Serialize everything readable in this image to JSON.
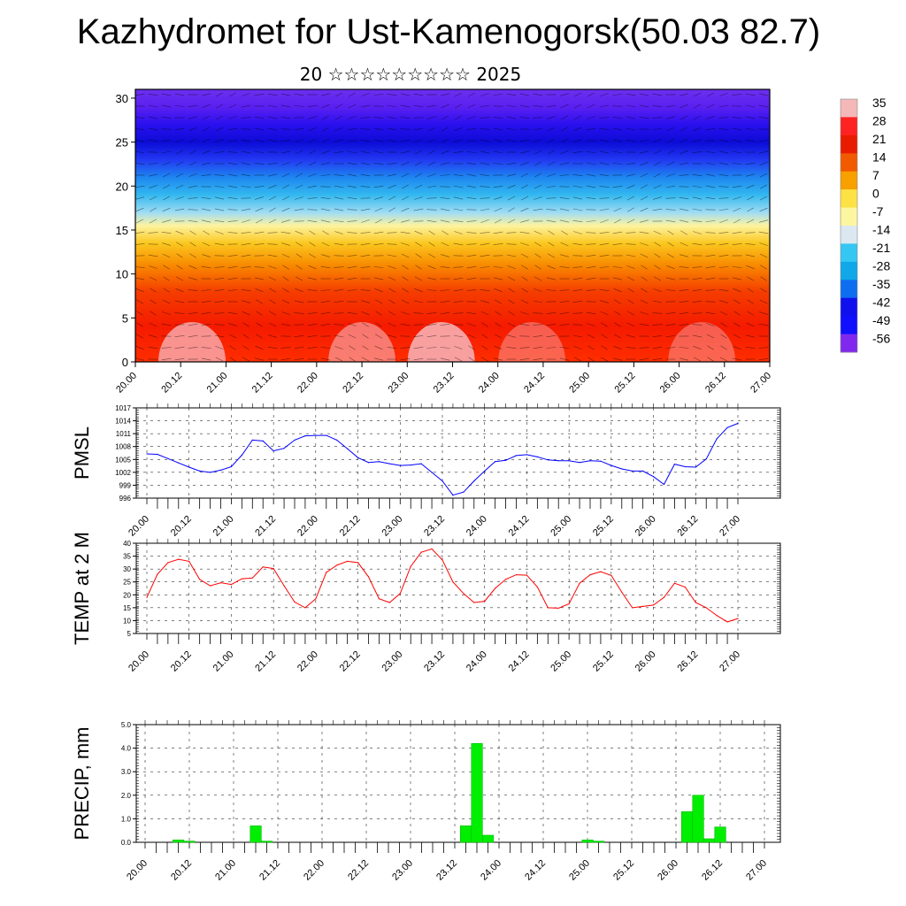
{
  "title": "Kazhydromet for Ust-Kamenogorsk(50.03 82.7)",
  "subtitle": "20 ☆☆☆☆☆☆☆☆☆ 2025",
  "time_labels": [
    "20.00",
    "20.12",
    "21.00",
    "21.12",
    "22.00",
    "22.12",
    "23.00",
    "23.12",
    "24.00",
    "24.12",
    "25.00",
    "25.12",
    "26.00",
    "26.12",
    "27.00"
  ],
  "colors": {
    "pmsl_line": "#0000ff",
    "temp_line": "#ff0000",
    "precip_bar": "#00ee00",
    "precip_edge": "#00bb00"
  },
  "chart_data": [
    {
      "type": "heatmap",
      "name": "vertical-section",
      "y_ticks": [
        0,
        5,
        10,
        15,
        20,
        25,
        30
      ],
      "ylim": [
        0,
        31
      ],
      "colorbar_labels": [
        "35",
        "28",
        "21",
        "14",
        "7",
        "0",
        "-7",
        "-14",
        "-21",
        "-28",
        "-35",
        "-42",
        "-49",
        "-56"
      ],
      "colorbar_colors": [
        "#f4b8b8",
        "#ff2222",
        "#e81c00",
        "#f25a00",
        "#f7a000",
        "#fde246",
        "#fdf6a0",
        "#dbe8f2",
        "#35c6f2",
        "#10a8e8",
        "#0e6ef0",
        "#1010ee",
        "#1010ff",
        "#8028ee"
      ],
      "layer_colors": [
        {
          "z": 0,
          "color": "#ff2e00"
        },
        {
          "z": 4,
          "color": "#f51a00"
        },
        {
          "z": 8,
          "color": "#f53d00"
        },
        {
          "z": 11,
          "color": "#f88a00"
        },
        {
          "z": 13.5,
          "color": "#fbc71e"
        },
        {
          "z": 15.5,
          "color": "#fdf3a0"
        },
        {
          "z": 17,
          "color": "#9fdcf4"
        },
        {
          "z": 19,
          "color": "#33b8ef"
        },
        {
          "z": 21,
          "color": "#1e86f0"
        },
        {
          "z": 23,
          "color": "#2238f2"
        },
        {
          "z": 25,
          "color": "#0c0cd6"
        },
        {
          "z": 27,
          "color": "#2a10ee"
        },
        {
          "z": 29,
          "color": "#5a20f0"
        },
        {
          "z": 31,
          "color": "#6c30ee"
        }
      ]
    },
    {
      "type": "line",
      "ylabel": "PMSL",
      "ylim": [
        996,
        1017
      ],
      "y_ticks": [
        996,
        999,
        1002,
        1005,
        1008,
        1011,
        1014,
        1017
      ],
      "x": [
        0,
        3,
        6,
        9,
        12,
        15,
        18,
        21,
        24,
        27,
        30,
        33,
        36,
        39,
        42,
        45,
        48,
        51,
        54,
        57,
        60,
        63,
        66,
        69,
        72,
        75,
        78,
        81,
        84,
        87,
        90,
        93,
        96,
        99,
        102,
        105,
        108,
        111,
        114,
        117,
        120,
        123,
        126,
        129,
        132,
        135,
        138,
        141,
        144,
        147,
        150,
        153,
        156,
        159,
        162,
        165,
        168
      ],
      "series": [
        {
          "values": [
            1006.3,
            1006.2,
            1005.2,
            1004.2,
            1003.2,
            1002.3,
            1002.0,
            1002.5,
            1003.3,
            1006.0,
            1009.5,
            1009.3,
            1007.0,
            1007.6,
            1009.5,
            1010.5,
            1010.6,
            1010.6,
            1009.5,
            1007.5,
            1005.4,
            1004.3,
            1004.5,
            1004.0,
            1003.6,
            1003.7,
            1004.0,
            1002.0,
            1000.0,
            996.7,
            997.4,
            1000.0,
            1002.3,
            1004.5,
            1004.8,
            1005.9,
            1006.1,
            1005.6,
            1004.9,
            1004.7,
            1004.7,
            1004.3,
            1004.7,
            1004.6,
            1003.6,
            1002.8,
            1002.3,
            1002.3,
            1001.0,
            999.2,
            1003.9,
            1003.3,
            1003.2,
            1005.1,
            1009.8,
            1012.4,
            1013.4
          ]
        }
      ]
    },
    {
      "type": "line",
      "ylabel": "TEMP at 2 M",
      "ylim": [
        5,
        40
      ],
      "y_ticks": [
        5,
        10,
        15,
        20,
        25,
        30,
        35,
        40
      ],
      "x": [
        0,
        3,
        6,
        9,
        12,
        15,
        18,
        21,
        24,
        27,
        30,
        33,
        36,
        39,
        42,
        45,
        48,
        51,
        54,
        57,
        60,
        63,
        66,
        69,
        72,
        75,
        78,
        81,
        84,
        87,
        90,
        93,
        96,
        99,
        102,
        105,
        108,
        111,
        114,
        117,
        120,
        123,
        126,
        129,
        132,
        135,
        138,
        141,
        144,
        147,
        150,
        153,
        156,
        159,
        162,
        165,
        168
      ],
      "series": [
        {
          "values": [
            19,
            28,
            32.5,
            33.8,
            33,
            26,
            23.5,
            24.7,
            24,
            26.2,
            26.5,
            30.8,
            30.2,
            23.5,
            17.2,
            15,
            18.5,
            28.7,
            31.5,
            33,
            32.5,
            27,
            18.5,
            17,
            20.5,
            31,
            36.5,
            37.8,
            33.5,
            25,
            20.5,
            17,
            17.5,
            22.5,
            26,
            27.8,
            27.6,
            23,
            15,
            14.8,
            16.5,
            24.5,
            27.8,
            29,
            27.5,
            21,
            15,
            15.5,
            16,
            19,
            24.5,
            23,
            17,
            15,
            12,
            9.5,
            10.8
          ]
        }
      ]
    },
    {
      "type": "bar",
      "ylabel": "PRECIP, mm",
      "ylim": [
        0,
        5
      ],
      "y_ticks": [
        "0.0",
        "1.0",
        "2.0",
        "3.0",
        "4.0",
        "5.0"
      ],
      "bar_width_hours": 3,
      "x": [
        9,
        12,
        30,
        33,
        87,
        90,
        93,
        120,
        123,
        147,
        150,
        153,
        156
      ],
      "values": [
        0.1,
        0.05,
        0.7,
        0.05,
        0.7,
        4.2,
        0.3,
        0.1,
        0.05,
        1.3,
        2.0,
        0.15,
        0.65
      ]
    }
  ]
}
